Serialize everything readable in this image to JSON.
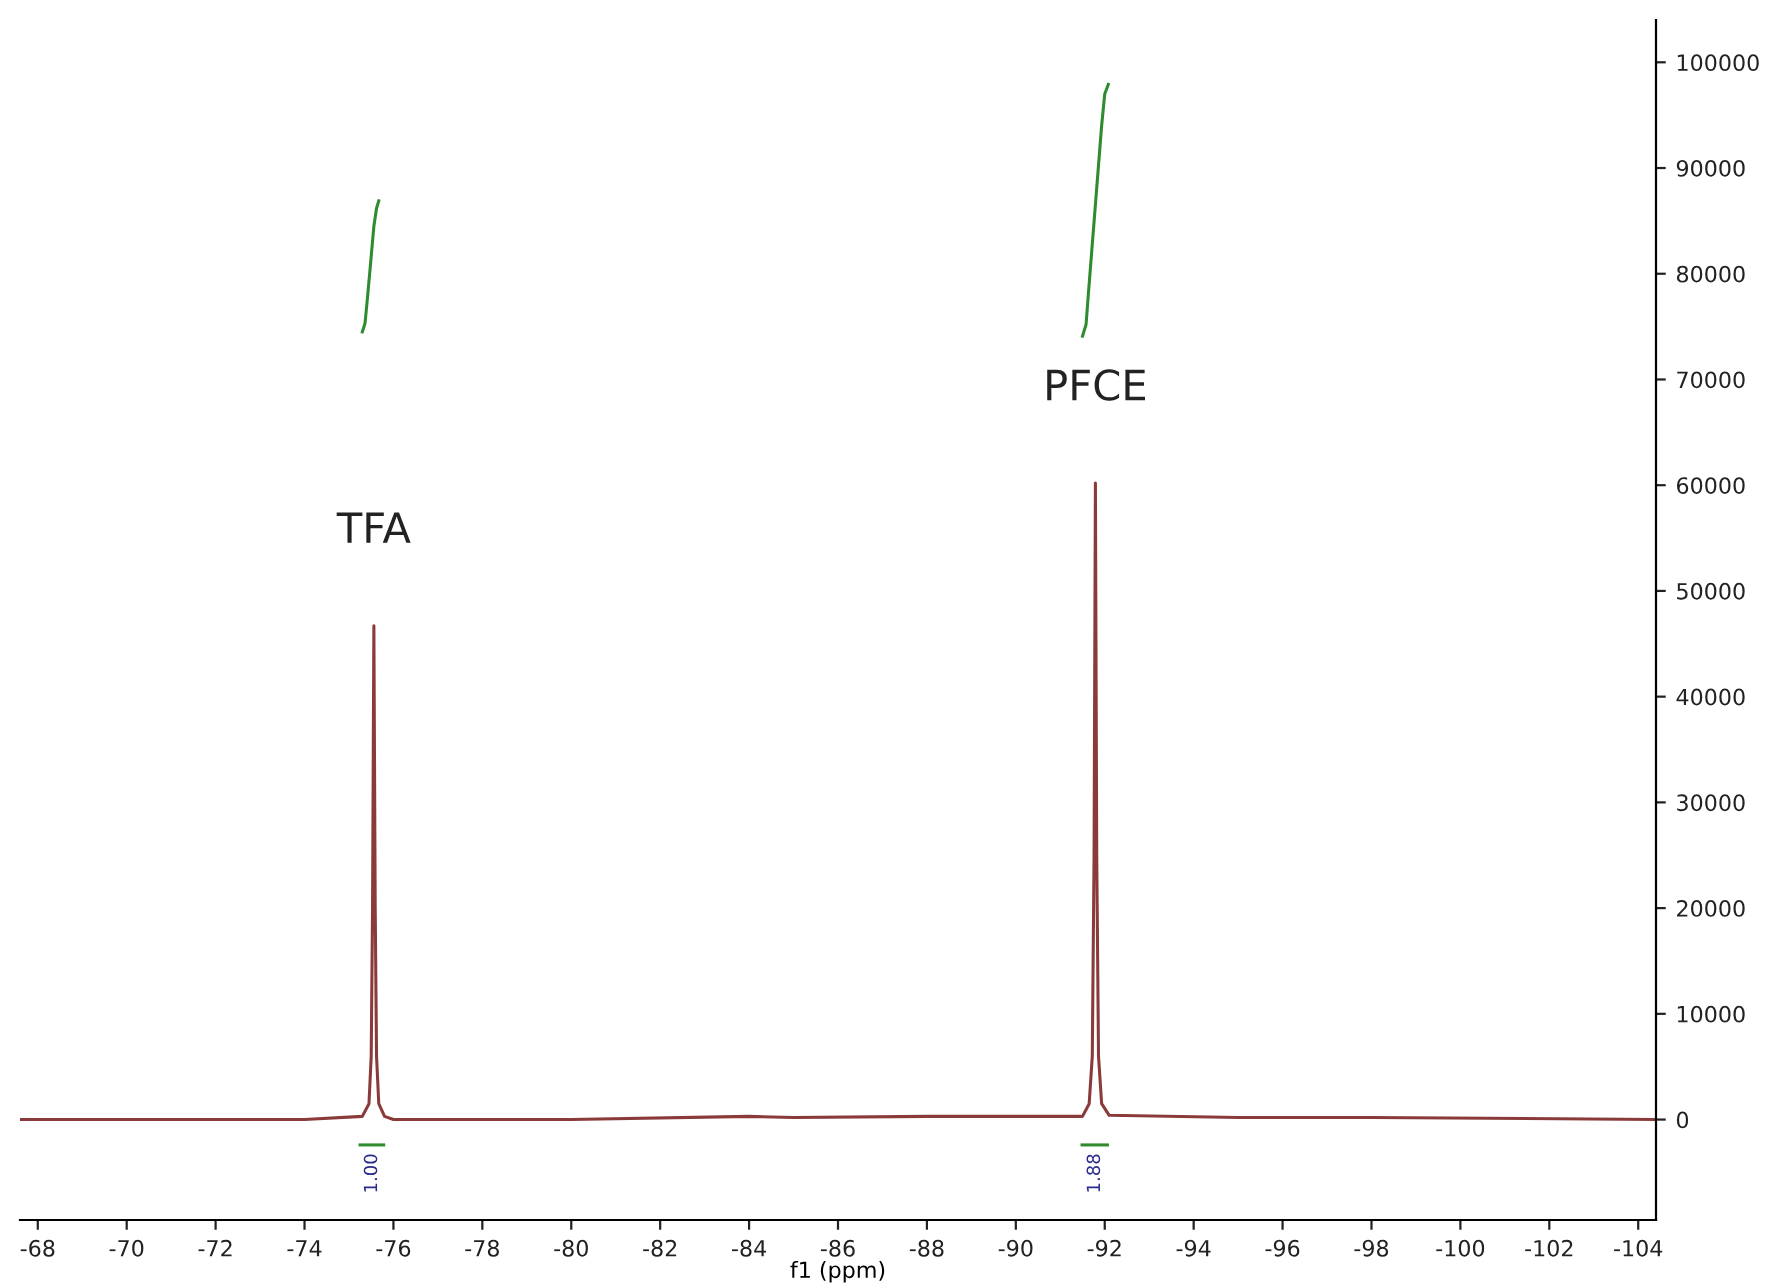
{
  "chart_data": {
    "type": "line",
    "xlabel": "f1 (ppm)",
    "xlim": [
      -67.6,
      -104.4
    ],
    "xticks": [
      -68,
      -70,
      -72,
      -74,
      -76,
      -78,
      -80,
      -82,
      -84,
      -86,
      -88,
      -90,
      -92,
      -94,
      -96,
      -98,
      -100,
      -102,
      -104
    ],
    "ylim": [
      -9500,
      104000
    ],
    "yticks": [
      0,
      10000,
      20000,
      30000,
      40000,
      50000,
      60000,
      70000,
      80000,
      90000,
      100000
    ],
    "grid": false,
    "legend": false,
    "marker": "none",
    "line_style": "solid",
    "series": [
      {
        "color": "#8b3a3a",
        "x": [
          -67.6,
          -70,
          -74,
          -75.3,
          -75.45,
          -75.5,
          -75.53,
          -75.56,
          -75.59,
          -75.62,
          -75.67,
          -75.8,
          -76,
          -80,
          -84,
          -85,
          -88,
          -91.5,
          -91.65,
          -91.72,
          -91.76,
          -91.79,
          -91.82,
          -91.86,
          -91.93,
          -92.1,
          -95,
          -98,
          -104.4
        ],
        "values": [
          0,
          0,
          0,
          300,
          1500,
          6000,
          20000,
          46700,
          20000,
          6000,
          1500,
          300,
          0,
          0,
          300,
          200,
          300,
          300,
          1500,
          6000,
          25000,
          60200,
          25000,
          6000,
          1500,
          400,
          200,
          200,
          0
        ]
      },
      {
        "color": "#2e8b2e",
        "x": [
          -75.3,
          -75.36,
          -75.4,
          -75.48,
          -75.56,
          -75.62,
          -75.67
        ],
        "values": [
          74500,
          75300,
          77000,
          80700,
          84500,
          86200,
          86900
        ]
      },
      {
        "color": "#2e8b2e",
        "x": [
          -91.5,
          -91.58,
          -91.63,
          -91.78,
          -91.93,
          -92.0,
          -92.08
        ],
        "values": [
          74100,
          75200,
          78000,
          86000,
          94000,
          97000,
          97900
        ]
      },
      {
        "color": "#2e8b2e",
        "x": [
          -75.25,
          -75.78
        ],
        "values": [
          -2400,
          -2400
        ]
      },
      {
        "color": "#2e8b2e",
        "x": [
          -91.49,
          -92.06
        ],
        "values": [
          -2400,
          -2400
        ]
      }
    ],
    "annotations": [
      {
        "text": "TFA",
        "x": -75.56,
        "y": 46700
      },
      {
        "text": "PFCE",
        "x": -91.79,
        "y": 60200
      },
      {
        "text": "1.00",
        "x": -75.52,
        "y": -2400
      },
      {
        "text": "1.88",
        "x": -91.78,
        "y": -2400
      }
    ]
  }
}
